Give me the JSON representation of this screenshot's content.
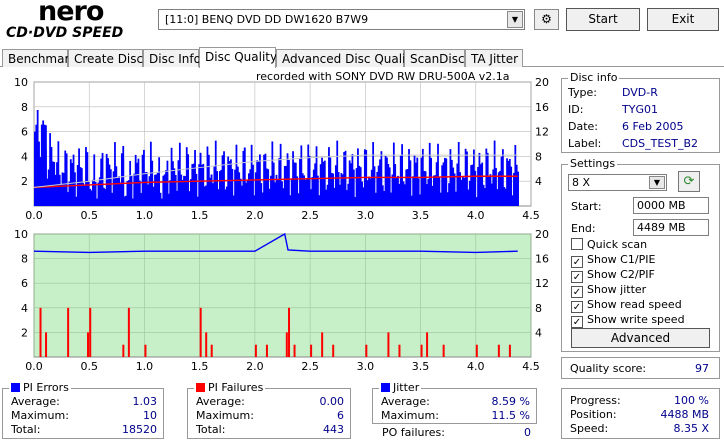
{
  "logo": {
    "nero": "nero",
    "cd_dvd_speed": "CD·DVD SPEED"
  },
  "drive": {
    "selected": "[11:0]  BENQ DVD DD DW1620 B7W9"
  },
  "buttons": {
    "start": "Start",
    "exit": "Exit",
    "advanced": "Advanced"
  },
  "tabs": [
    "Benchmark",
    "Create Disc",
    "Disc Info",
    "Disc Quality",
    "Advanced Disc Quality",
    "ScanDisc",
    "TA Jitter"
  ],
  "active_tab": "Disc Quality",
  "recorded_with": "recorded with SONY     DVD RW DRU-500A  v2.1a",
  "chart_data": [
    {
      "type": "bar",
      "x_ticks": [
        "0.0",
        "0.5",
        "1.0",
        "1.5",
        "2.0",
        "2.5",
        "3.0",
        "3.5",
        "4.0",
        "4.5"
      ],
      "xlim": [
        0,
        4.5
      ],
      "y_left_ticks": [
        "10",
        "8",
        "6",
        "4",
        "2"
      ],
      "ylim_left": [
        0,
        10
      ],
      "y_right_ticks": [
        "20",
        "16",
        "12",
        "8",
        "4"
      ],
      "ylim_right": [
        0,
        20
      ],
      "background": "#ffffff",
      "series": [
        {
          "color": "#0000ff",
          "values_note": "",
          "x": [
            0.0,
            0.1,
            0.2,
            0.3,
            0.4,
            0.5,
            0.6,
            0.7,
            0.8,
            0.9,
            1.0,
            1.1,
            1.2,
            1.3,
            1.4,
            1.5,
            1.6,
            1.7,
            1.8,
            1.9,
            2.0,
            2.1,
            2.2,
            2.3,
            2.4,
            2.5,
            2.6,
            2.7,
            2.8,
            2.9,
            3.0,
            3.1,
            3.2,
            3.3,
            3.4,
            3.5,
            3.6,
            3.7,
            3.8,
            3.9,
            4.0,
            4.1,
            4.2,
            4.3,
            4.38
          ],
          "y": [
            6,
            4,
            3,
            3,
            3,
            2,
            3,
            3,
            2,
            3,
            3,
            2,
            3,
            3,
            3,
            3,
            3,
            3,
            3,
            3,
            3,
            3,
            3,
            3,
            3,
            3,
            3,
            3,
            3,
            3,
            3,
            3,
            3,
            3,
            3,
            3,
            3,
            3,
            3,
            3,
            3,
            3,
            3,
            3,
            3
          ]
        },
        {
          "color": "#ff0000",
          "x": [
            0.0,
            0.5,
            1.0,
            1.5,
            2.0,
            2.5,
            3.0,
            3.5,
            4.0,
            4.38
          ],
          "y": [
            1.5,
            1.7,
            1.9,
            2.0,
            2.1,
            2.2,
            2.3,
            2.3,
            2.4,
            2.4
          ]
        },
        {
          "color": "#cccccc",
          "x": [
            0.0,
            0.5,
            1.0,
            1.5,
            2.0,
            2.5,
            3.0,
            3.5,
            4.0,
            4.38
          ],
          "y": [
            1.5,
            2.0,
            2.6,
            3.1,
            3.6,
            3.9,
            4.1,
            4.1,
            4.1,
            4.1
          ]
        }
      ]
    },
    {
      "type": "bar",
      "x_ticks": [
        "0.0",
        "0.5",
        "1.0",
        "1.5",
        "2.0",
        "2.5",
        "3.0",
        "3.5",
        "4.0",
        "4.5"
      ],
      "xlim": [
        0,
        4.5
      ],
      "y_left_ticks": [
        "10",
        "8",
        "6",
        "4",
        "2"
      ],
      "ylim_left": [
        0,
        10
      ],
      "y_right_ticks": [
        "20",
        "16",
        "12",
        "8",
        "4"
      ],
      "ylim_right": [
        0,
        20
      ],
      "background": "#c8f0c8",
      "series": [
        {
          "color": "#ff0000",
          "x": [
            0.05,
            0.1,
            0.3,
            0.48,
            0.5,
            0.8,
            0.85,
            1.0,
            1.5,
            1.55,
            1.6,
            2.0,
            2.1,
            2.28,
            2.3,
            2.35,
            2.5,
            2.6,
            2.7,
            3.0,
            3.2,
            3.3,
            3.5,
            3.55,
            3.7,
            4.0,
            4.2,
            4.3
          ],
          "y": [
            4,
            2,
            4,
            2,
            4,
            1,
            4,
            1,
            4,
            2,
            1,
            1,
            1,
            2,
            4,
            1,
            1,
            2,
            1,
            1,
            2,
            1,
            1,
            2,
            1,
            1,
            1,
            1
          ]
        },
        {
          "color": "#0000ff",
          "x": [
            0.0,
            0.5,
            1.0,
            1.5,
            2.0,
            2.27,
            2.3,
            2.5,
            3.0,
            3.5,
            4.0,
            4.38
          ],
          "y": [
            8.6,
            8.5,
            8.6,
            8.6,
            8.6,
            10,
            8.7,
            8.6,
            8.6,
            8.6,
            8.5,
            8.6
          ]
        }
      ]
    }
  ],
  "disc_info": {
    "title": "Disc info",
    "type_label": "Type:",
    "type": "DVD-R",
    "id_label": "ID:",
    "id": "TYG01",
    "date_label": "Date:",
    "date": "6 Feb 2005",
    "label_label": "Label:",
    "label": "CDS_TEST_B2"
  },
  "settings": {
    "title": "Settings",
    "speed": "8 X",
    "start_label": "Start:",
    "start": "0000 MB",
    "end_label": "End:",
    "end": "4489 MB",
    "checks": [
      {
        "label": "Quick scan",
        "checked": false
      },
      {
        "label": "Show C1/PIE",
        "checked": true
      },
      {
        "label": "Show C2/PIF",
        "checked": true
      },
      {
        "label": "Show jitter",
        "checked": true
      },
      {
        "label": "Show read speed",
        "checked": true
      },
      {
        "label": "Show write speed",
        "checked": true
      }
    ]
  },
  "quality": {
    "label": "Quality score:",
    "value": "97"
  },
  "progress": {
    "progress_label": "Progress:",
    "progress": "100 %",
    "position_label": "Position:",
    "position": "4488 MB",
    "speed_label": "Speed:",
    "speed": "8.35 X"
  },
  "pi_errors": {
    "title": "PI Errors",
    "color": "#0000ff",
    "average_label": "Average:",
    "average": "1.03",
    "maximum_label": "Maximum:",
    "maximum": "10",
    "total_label": "Total:",
    "total": "18520"
  },
  "pi_failures": {
    "title": "PI Failures",
    "color": "#ff0000",
    "average_label": "Average:",
    "average": "0.00",
    "maximum_label": "Maximum:",
    "maximum": "6",
    "total_label": "Total:",
    "total": "443"
  },
  "jitter": {
    "title": "Jitter",
    "color": "#0000ff",
    "average_label": "Average:",
    "average": "8.59 %",
    "maximum_label": "Maximum:",
    "maximum": "11.5 %",
    "po_label": "PO failures:",
    "po": "0"
  }
}
